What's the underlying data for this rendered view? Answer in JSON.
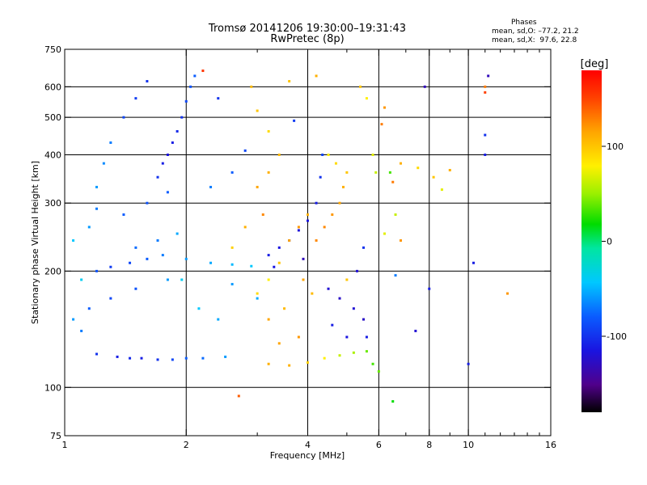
{
  "header": {
    "title_line1": "Tromsø 20141206 19:30:00–19:31:43",
    "title_line2": "RwPretec (8p)"
  },
  "stats": {
    "heading": "Phases",
    "line_o": "mean, sd,O: –77.2, 21.2",
    "line_x": "mean, sd,X:  97.6, 22.8"
  },
  "colorbar": {
    "unit": "[deg]",
    "ticks": [
      100,
      0,
      -100
    ],
    "range": [
      -180,
      180
    ]
  },
  "chart_data": {
    "type": "scatter",
    "title": "Tromsø 20141206 19:30:00–19:31:43",
    "subtitle": "RwPretec (8p)",
    "xlabel": "Frequency [MHz]",
    "ylabel": "Stationary phase Virtual Height [km]",
    "xscale": "log",
    "yscale": "log",
    "xlim": [
      1,
      16
    ],
    "ylim": [
      75,
      750
    ],
    "xticks": [
      1,
      2,
      4,
      6,
      8,
      10,
      16
    ],
    "yticks": [
      75,
      100,
      200,
      300,
      400,
      500,
      600,
      750
    ],
    "grid": true,
    "color_variable": "phase [deg]",
    "series": [
      {
        "points": [
          [
            1.35,
            120,
            -110
          ],
          [
            1.45,
            119,
            -105
          ],
          [
            1.55,
            119,
            -110
          ],
          [
            1.7,
            118,
            -100
          ],
          [
            1.85,
            118,
            -90
          ],
          [
            2.0,
            119,
            -80
          ],
          [
            2.2,
            119,
            -75
          ],
          [
            2.5,
            120,
            -60
          ],
          [
            1.2,
            122,
            -100
          ],
          [
            1.1,
            140,
            -70
          ],
          [
            1.05,
            150,
            -60
          ],
          [
            1.15,
            160,
            -80
          ],
          [
            1.3,
            170,
            -90
          ],
          [
            1.5,
            180,
            -85
          ],
          [
            1.8,
            190,
            -60
          ],
          [
            1.2,
            200,
            -85
          ],
          [
            1.3,
            205,
            -95
          ],
          [
            1.45,
            210,
            -90
          ],
          [
            1.6,
            215,
            -80
          ],
          [
            1.75,
            220,
            -70
          ],
          [
            2.0,
            215,
            -60
          ],
          [
            2.3,
            210,
            -55
          ],
          [
            2.6,
            208,
            -50
          ],
          [
            2.9,
            206,
            -45
          ],
          [
            1.5,
            230,
            -75
          ],
          [
            1.7,
            240,
            -70
          ],
          [
            1.9,
            250,
            -55
          ],
          [
            1.4,
            280,
            -80
          ],
          [
            1.6,
            300,
            -85
          ],
          [
            1.8,
            320,
            -80
          ],
          [
            1.7,
            350,
            -100
          ],
          [
            1.75,
            380,
            -110
          ],
          [
            1.8,
            400,
            -115
          ],
          [
            1.85,
            430,
            -110
          ],
          [
            1.9,
            460,
            -105
          ],
          [
            1.95,
            500,
            -100
          ],
          [
            2.0,
            550,
            -90
          ],
          [
            2.05,
            600,
            -85
          ],
          [
            2.1,
            640,
            -80
          ],
          [
            1.6,
            620,
            -100
          ],
          [
            1.5,
            560,
            -95
          ],
          [
            1.4,
            500,
            -90
          ],
          [
            1.3,
            430,
            -70
          ],
          [
            1.25,
            380,
            -65
          ],
          [
            1.2,
            330,
            -60
          ],
          [
            2.3,
            330,
            -70
          ],
          [
            2.6,
            360,
            -80
          ],
          [
            2.8,
            410,
            -90
          ],
          [
            3.2,
            220,
            -110
          ],
          [
            3.4,
            230,
            -115
          ],
          [
            3.6,
            240,
            -120
          ],
          [
            3.8,
            255,
            -118
          ],
          [
            4.0,
            270,
            -115
          ],
          [
            4.2,
            300,
            -110
          ],
          [
            4.3,
            350,
            -100
          ],
          [
            4.35,
            400,
            -90
          ],
          [
            3.9,
            215,
            -130
          ],
          [
            3.3,
            205,
            -115
          ],
          [
            4.5,
            180,
            -120
          ],
          [
            4.8,
            170,
            -125
          ],
          [
            5.2,
            160,
            -120
          ],
          [
            5.5,
            150,
            -125
          ],
          [
            5.6,
            135,
            -110
          ],
          [
            5.0,
            135,
            -115
          ],
          [
            4.6,
            145,
            -110
          ],
          [
            5.3,
            200,
            -120
          ],
          [
            5.5,
            230,
            -100
          ],
          [
            6.6,
            195,
            -70
          ],
          [
            7.4,
            140,
            -120
          ],
          [
            10.3,
            210,
            -110
          ],
          [
            11.0,
            400,
            -110
          ],
          [
            11.0,
            450,
            -100
          ],
          [
            10.0,
            115,
            -110
          ],
          [
            2.6,
            185,
            -60
          ],
          [
            3.0,
            170,
            -55
          ],
          [
            2.4,
            150,
            -55
          ],
          [
            3.2,
            115,
            110
          ],
          [
            3.6,
            114,
            110
          ],
          [
            4.0,
            116,
            95
          ],
          [
            4.4,
            119,
            80
          ],
          [
            4.8,
            121,
            60
          ],
          [
            5.2,
            123,
            50
          ],
          [
            5.6,
            124,
            30
          ],
          [
            3.4,
            130,
            115
          ],
          [
            3.8,
            135,
            120
          ],
          [
            3.2,
            150,
            115
          ],
          [
            3.5,
            160,
            105
          ],
          [
            3.0,
            175,
            90
          ],
          [
            3.2,
            190,
            80
          ],
          [
            3.4,
            210,
            100
          ],
          [
            3.6,
            240,
            115
          ],
          [
            3.8,
            260,
            120
          ],
          [
            4.0,
            280,
            110
          ],
          [
            4.2,
            240,
            125
          ],
          [
            4.4,
            260,
            125
          ],
          [
            4.6,
            280,
            120
          ],
          [
            4.8,
            300,
            115
          ],
          [
            4.9,
            330,
            110
          ],
          [
            5.0,
            360,
            100
          ],
          [
            4.7,
            380,
            90
          ],
          [
            4.5,
            400,
            80
          ],
          [
            3.0,
            330,
            115
          ],
          [
            3.2,
            360,
            110
          ],
          [
            3.4,
            400,
            105
          ],
          [
            3.2,
            460,
            90
          ],
          [
            3.0,
            520,
            100
          ],
          [
            2.9,
            600,
            105
          ],
          [
            3.6,
            620,
            100
          ],
          [
            4.2,
            640,
            110
          ],
          [
            5.4,
            600,
            100
          ],
          [
            5.6,
            560,
            80
          ],
          [
            5.8,
            400,
            70
          ],
          [
            5.9,
            360,
            60
          ],
          [
            6.2,
            250,
            70
          ],
          [
            6.6,
            280,
            60
          ],
          [
            6.8,
            240,
            120
          ],
          [
            6.5,
            340,
            130
          ],
          [
            6.8,
            380,
            110
          ],
          [
            7.5,
            370,
            90
          ],
          [
            8.6,
            325,
            70
          ],
          [
            9.0,
            365,
            110
          ],
          [
            8.2,
            350,
            100
          ],
          [
            11.0,
            600,
            130
          ],
          [
            11.0,
            580,
            150
          ],
          [
            6.2,
            530,
            120
          ],
          [
            12.5,
            175,
            120
          ],
          [
            2.7,
            95,
            140
          ],
          [
            6.5,
            92,
            0
          ],
          [
            5.8,
            115,
            20
          ],
          [
            6.0,
            110,
            30
          ],
          [
            2.2,
            660,
            155
          ],
          [
            3.9,
            190,
            115
          ],
          [
            4.1,
            175,
            105
          ],
          [
            5.0,
            190,
            100
          ],
          [
            2.6,
            230,
            95
          ],
          [
            2.8,
            260,
            110
          ],
          [
            3.1,
            280,
            125
          ],
          [
            6.1,
            480,
            130
          ],
          [
            6.4,
            360,
            20
          ],
          [
            7.8,
            600,
            -130
          ],
          [
            11.2,
            640,
            -130
          ],
          [
            8.0,
            180,
            -110
          ],
          [
            3.7,
            490,
            -95
          ],
          [
            2.4,
            560,
            -100
          ],
          [
            1.1,
            190,
            -40
          ],
          [
            1.05,
            240,
            -45
          ],
          [
            1.15,
            260,
            -60
          ],
          [
            1.2,
            290,
            -70
          ],
          [
            1.95,
            190,
            -40
          ],
          [
            2.15,
            160,
            -45
          ]
        ]
      }
    ]
  }
}
